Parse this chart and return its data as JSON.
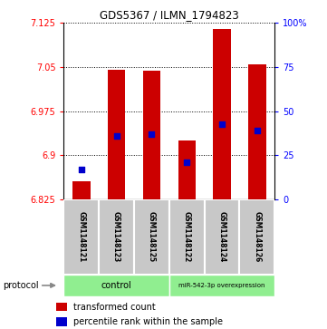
{
  "title": "GDS5367 / ILMN_1794823",
  "samples": [
    "GSM1148121",
    "GSM1148123",
    "GSM1148125",
    "GSM1148122",
    "GSM1148124",
    "GSM1148126"
  ],
  "transformed_counts": [
    6.855,
    7.045,
    7.043,
    6.925,
    7.115,
    7.055
  ],
  "percentile_ranks": [
    6.876,
    6.933,
    6.935,
    6.887,
    6.952,
    6.942
  ],
  "ymin": 6.825,
  "ymax": 7.125,
  "yticks": [
    6.825,
    6.9,
    6.975,
    7.05,
    7.125
  ],
  "right_yticks_pct": [
    0,
    25,
    50,
    75,
    100
  ],
  "bar_color": "#CC0000",
  "dot_color": "#0000CC",
  "bar_width": 0.5,
  "dot_size": 25,
  "legend_entries": [
    "transformed count",
    "percentile rank within the sample"
  ],
  "background_sample": "#C8C8C8",
  "group_color": "#90EE90",
  "title_fontsize": 8.5,
  "tick_fontsize": 7,
  "sample_fontsize": 5.5,
  "proto_fontsize": 7,
  "legend_fontsize": 7
}
